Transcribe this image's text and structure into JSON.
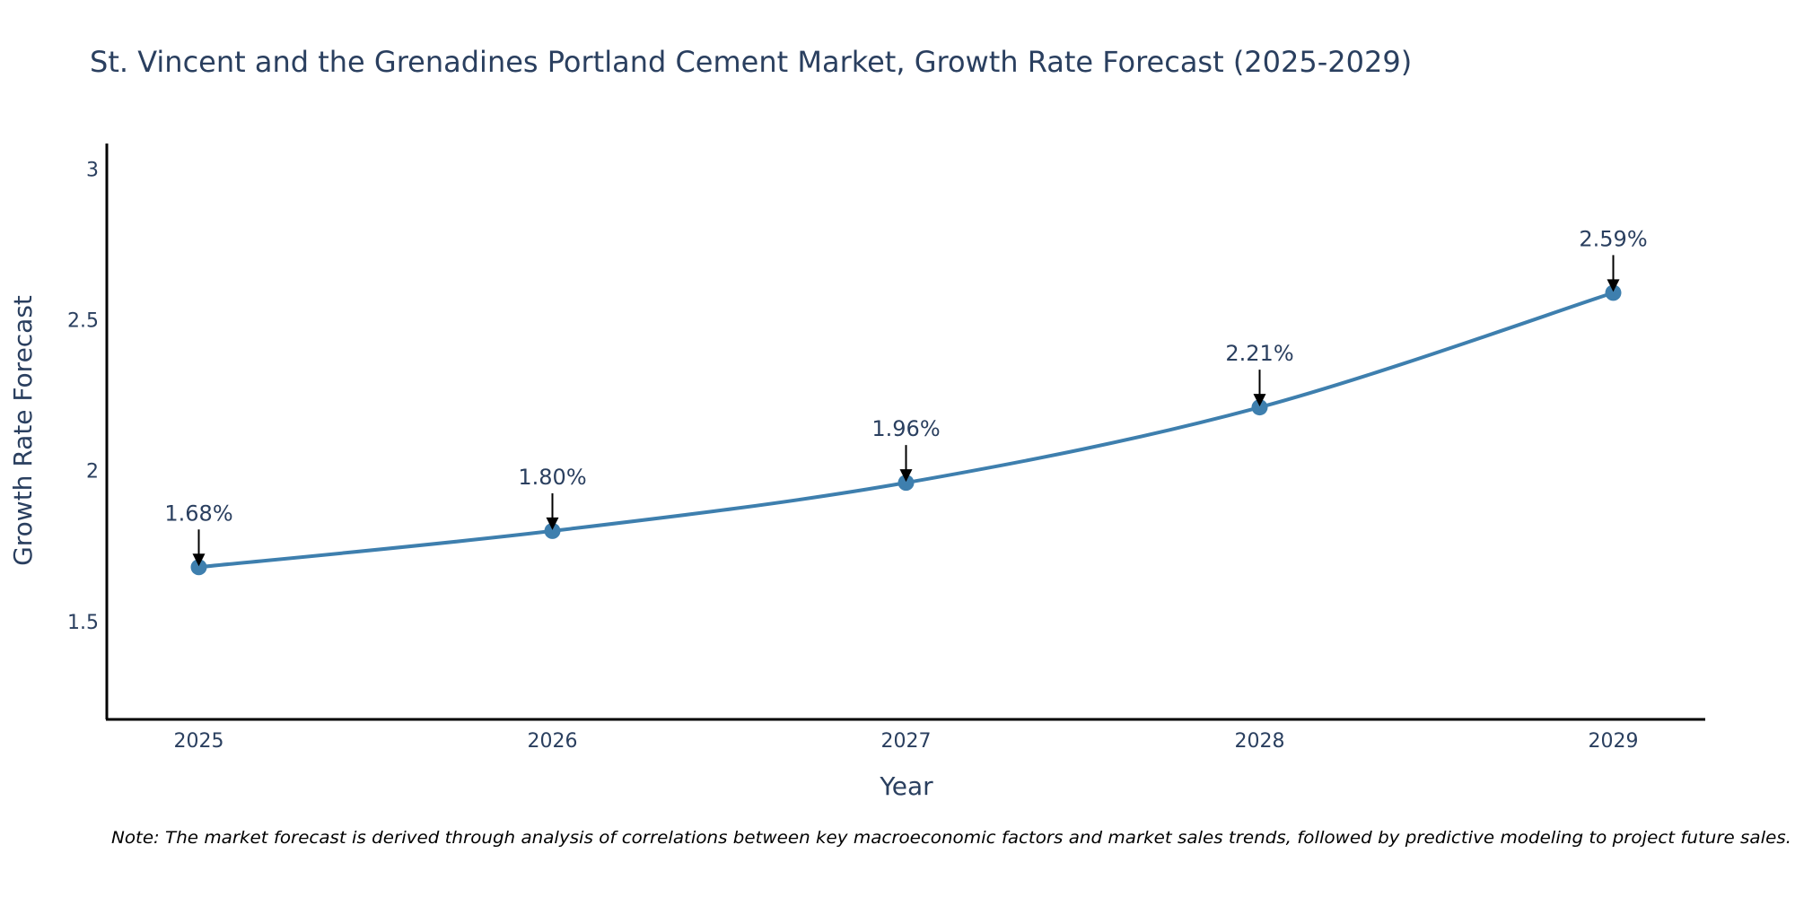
{
  "chart_data": {
    "type": "line",
    "title": "St. Vincent and the Grenadines Portland Cement Market, Growth Rate Forecast (2025-2029)",
    "xlabel": "Year",
    "ylabel": "Growth Rate Forecast",
    "categories": [
      "2025",
      "2026",
      "2027",
      "2028",
      "2029"
    ],
    "values": [
      1.68,
      1.8,
      1.96,
      2.21,
      2.59
    ],
    "data_labels": [
      "1.68%",
      "1.80%",
      "1.96%",
      "2.21%",
      "2.59%"
    ],
    "y_ticks": [
      1.5,
      2,
      2.5,
      3
    ],
    "y_tick_labels": [
      "1.5",
      "2",
      "2.5",
      "3"
    ],
    "ylim": [
      1.175,
      3.085
    ],
    "grid": false,
    "line_color": "#3e7fae",
    "marker_color": "#3e7fae",
    "annotation_arrow_color": "#000000",
    "axis_color": "#000000",
    "text_color": "#2a3f5f",
    "note": "Note: The market forecast is derived through analysis of correlations between key macroeconomic factors and market sales trends, followed by predictive modeling to project future sales."
  }
}
